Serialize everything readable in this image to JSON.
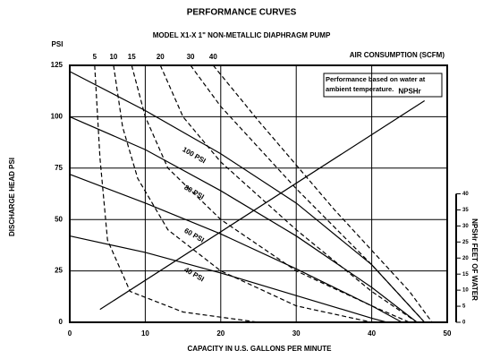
{
  "chart_data": {
    "type": "line",
    "title": "PERFORMANCE CURVES",
    "subtitle": "MODEL X1-X 1\" NON-METALLIC DIAPHRAGM PUMP",
    "x_label": "CAPACITY IN U.S. GALLONS PER MINUTE",
    "y_label": "DISCHARGE HEAD PSI",
    "y2_label": "NPSHr FEET OF WATER",
    "y_unit": "PSI",
    "air_label": "AIR CONSUMPTION (SCFM)",
    "note": "Performance based on water at ambient temperature.",
    "xlim": [
      0,
      50
    ],
    "xticks": [
      0,
      10,
      20,
      30,
      40,
      50
    ],
    "ylim": [
      0,
      125
    ],
    "yticks": [
      0,
      25,
      50,
      75,
      100,
      125
    ],
    "y2lim": [
      0,
      80
    ],
    "y2ticks": [
      0,
      5,
      10,
      15,
      20,
      25,
      30,
      35,
      40
    ],
    "grid": true,
    "series": [
      {
        "name": "100 PSI",
        "style": "solid",
        "color": "#000000",
        "x": [
          0,
          10,
          20,
          30,
          40,
          47
        ],
        "values": [
          122,
          103,
          82,
          58,
          28,
          0
        ]
      },
      {
        "name": "80 PSI",
        "style": "solid",
        "color": "#000000",
        "x": [
          0,
          10,
          20,
          30,
          40,
          46
        ],
        "values": [
          100,
          84,
          64,
          42,
          17,
          0
        ]
      },
      {
        "name": "60 PSI",
        "style": "solid",
        "color": "#000000",
        "x": [
          0,
          10,
          20,
          30,
          40,
          44
        ],
        "values": [
          72,
          58,
          43,
          26,
          8,
          0
        ]
      },
      {
        "name": "40 PSI",
        "style": "solid",
        "color": "#000000",
        "x": [
          0,
          10,
          20,
          30,
          40,
          42
        ],
        "values": [
          42,
          34,
          24,
          13,
          2,
          0
        ]
      },
      {
        "name": "5",
        "style": "dashed",
        "color": "#000000",
        "x": [
          3.3,
          4,
          5,
          8,
          15,
          25
        ],
        "values": [
          125,
          80,
          40,
          15,
          5,
          0
        ]
      },
      {
        "name": "10",
        "style": "dashed",
        "color": "#000000",
        "x": [
          5.8,
          7,
          9,
          13,
          20,
          30,
          40
        ],
        "values": [
          125,
          95,
          70,
          45,
          25,
          8,
          0
        ]
      },
      {
        "name": "15",
        "style": "dashed",
        "color": "#000000",
        "x": [
          8.2,
          10,
          13,
          20,
          30,
          40,
          45
        ],
        "values": [
          125,
          100,
          75,
          50,
          25,
          8,
          0
        ]
      },
      {
        "name": "20",
        "style": "dashed",
        "color": "#000000",
        "x": [
          12,
          15,
          20,
          30,
          40,
          46
        ],
        "values": [
          125,
          100,
          78,
          45,
          15,
          0
        ]
      },
      {
        "name": "30",
        "style": "dashed",
        "color": "#000000",
        "x": [
          16,
          20,
          30,
          40,
          47
        ],
        "values": [
          125,
          105,
          65,
          28,
          0
        ]
      },
      {
        "name": "40",
        "style": "dashed",
        "color": "#000000",
        "x": [
          19,
          25,
          35,
          45,
          48
        ],
        "values": [
          125,
          98,
          55,
          15,
          0
        ]
      },
      {
        "name": "NPSHr",
        "style": "solid",
        "color": "#000000",
        "axis": "y2",
        "x": [
          4,
          47
        ],
        "values": [
          4,
          69
        ]
      }
    ]
  }
}
